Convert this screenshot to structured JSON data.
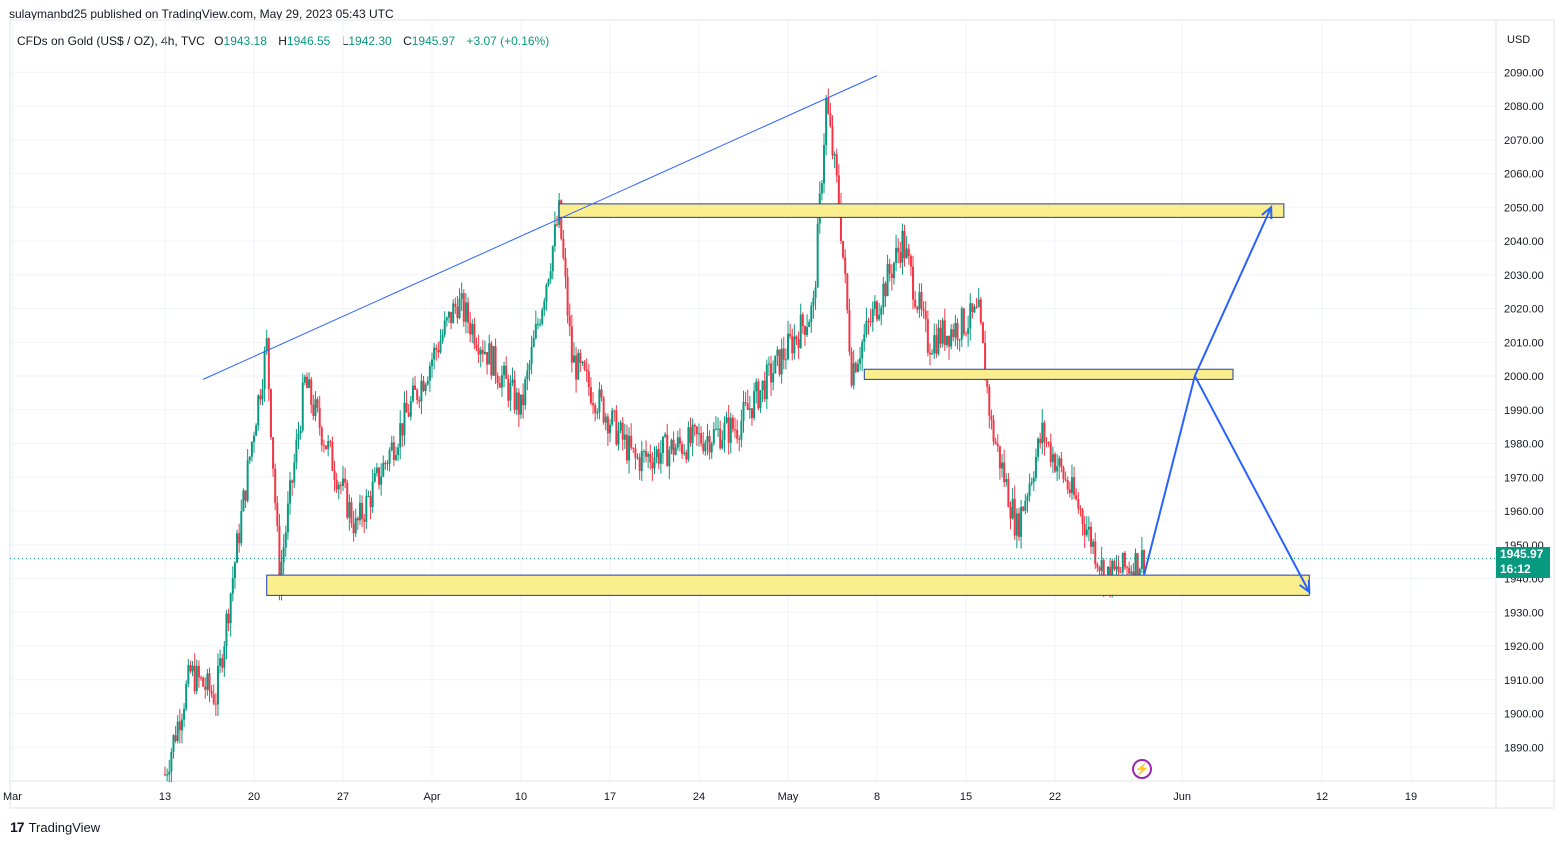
{
  "header": {
    "published": "sulaymanbd25 published on TradingView.com, May 29, 2023 05:43 UTC"
  },
  "legend": {
    "symbol": "CFDs on Gold (US$ / OZ), 4h, TVC",
    "o_label": "O",
    "o": "1943.18",
    "h_label": "H",
    "h": "1946.55",
    "l_label": "L",
    "l": "1942.30",
    "c_label": "C",
    "c": "1945.97",
    "change": "+3.07 (+0.16%)"
  },
  "price_axis": {
    "currency": "USD",
    "current_price": "1945.97",
    "countdown": "16:12"
  },
  "footer": {
    "brand": "TradingView"
  },
  "colors": {
    "up": "#089981",
    "down": "#f23645",
    "zone_fill": "#fbee8c",
    "zone_border": "#1e3fa8",
    "trend": "#2962ff",
    "price_line": "#089981"
  },
  "chart_data": {
    "type": "candlestick",
    "title": "",
    "ylim": [
      1880,
      2096
    ],
    "y_ticks": [
      "1890.00",
      "1900.00",
      "1910.00",
      "1920.00",
      "1930.00",
      "1940.00",
      "1950.00",
      "1960.00",
      "1970.00",
      "1980.00",
      "1990.00",
      "2000.00",
      "2010.00",
      "2020.00",
      "2030.00",
      "2040.00",
      "2050.00",
      "2060.00",
      "2070.00",
      "2080.00",
      "2090.00"
    ],
    "x_ticks": [
      "Mar",
      "13",
      "20",
      "27",
      "Apr",
      "10",
      "17",
      "24",
      "May",
      "8",
      "15",
      "22",
      "Jun",
      "12",
      "19"
    ],
    "x_tick_dates": [
      "2023-03-01",
      "2023-03-13",
      "2023-03-20",
      "2023-03-27",
      "2023-04-03",
      "2023-04-10",
      "2023-04-17",
      "2023-04-24",
      "2023-05-01",
      "2023-05-08",
      "2023-05-15",
      "2023-05-22",
      "2023-06-01",
      "2023-06-12",
      "2023-06-19"
    ],
    "key_prices": [
      {
        "date": "2023-03-13",
        "price": 1882
      },
      {
        "date": "2023-03-15",
        "price": 1912
      },
      {
        "date": "2023-03-17",
        "price": 1905
      },
      {
        "date": "2023-03-20",
        "price": 1985
      },
      {
        "date": "2023-03-21",
        "price": 2009
      },
      {
        "date": "2023-03-22",
        "price": 1940
      },
      {
        "date": "2023-03-24",
        "price": 1998
      },
      {
        "date": "2023-03-28",
        "price": 1955
      },
      {
        "date": "2023-04-05",
        "price": 2022
      },
      {
        "date": "2023-04-10",
        "price": 1990
      },
      {
        "date": "2023-04-13",
        "price": 2048
      },
      {
        "date": "2023-04-14",
        "price": 2005
      },
      {
        "date": "2023-04-19",
        "price": 1975
      },
      {
        "date": "2023-04-27",
        "price": 1985
      },
      {
        "date": "2023-05-03",
        "price": 2020
      },
      {
        "date": "2023-05-04",
        "price": 2081
      },
      {
        "date": "2023-05-05",
        "price": 2052
      },
      {
        "date": "2023-05-06",
        "price": 2002
      },
      {
        "date": "2023-05-10",
        "price": 2040
      },
      {
        "date": "2023-05-12",
        "price": 2010
      },
      {
        "date": "2023-05-16",
        "price": 2018
      },
      {
        "date": "2023-05-17",
        "price": 1985
      },
      {
        "date": "2023-05-19",
        "price": 1955
      },
      {
        "date": "2023-05-21",
        "price": 1983
      },
      {
        "date": "2023-05-24",
        "price": 1960
      },
      {
        "date": "2023-05-26",
        "price": 1940
      },
      {
        "date": "2023-05-29",
        "price": 1945.97
      }
    ],
    "zones": [
      {
        "from": "2023-04-13",
        "to": "2023-06-09",
        "low": 2047,
        "high": 2051
      },
      {
        "from": "2023-05-07",
        "to": "2023-06-05",
        "low": 1999,
        "high": 2002
      },
      {
        "from": "2023-03-21",
        "to": "2023-06-11",
        "low": 1935,
        "high": 1941
      }
    ],
    "trendline": {
      "from": {
        "date": "2023-03-16",
        "price": 1999
      },
      "to": {
        "date": "2023-05-08",
        "price": 2089
      }
    },
    "projection": [
      {
        "date": "2023-05-29",
        "price": 1941
      },
      {
        "date": "2023-06-02",
        "price": 2000
      },
      {
        "date": "2023-06-08",
        "price": 2050
      },
      {
        "date": "2023-06-02",
        "price": 2000
      },
      {
        "date": "2023-06-11",
        "price": 1936
      }
    ],
    "last_price": 1945.97,
    "grid": true,
    "legend": "top-left"
  }
}
